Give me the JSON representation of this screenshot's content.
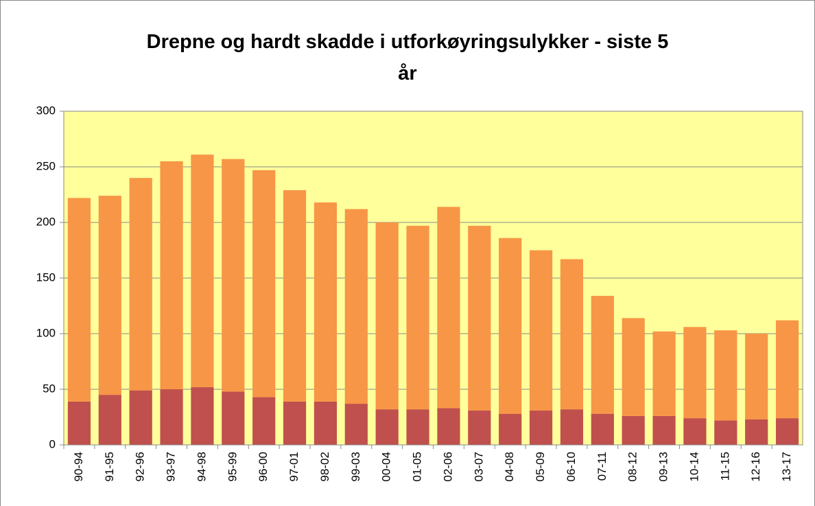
{
  "chart_data": {
    "type": "stacked_bar",
    "title": "Drepne og hardt skadde i utforkøyringsulykker - siste 5 år",
    "categories": [
      "90-94",
      "91-95",
      "92-96",
      "93-97",
      "94-98",
      "95-99",
      "96-00",
      "97-01",
      "98-02",
      "99-03",
      "00-04",
      "01-05",
      "02-06",
      "03-07",
      "04-08",
      "05-09",
      "06-10",
      "07-11",
      "08-12",
      "09-13",
      "10-14",
      "11-15",
      "12-16",
      "13-17"
    ],
    "series": [
      {
        "color": "#c0504d",
        "values": [
          39,
          45,
          49,
          50,
          52,
          48,
          43,
          39,
          39,
          37,
          32,
          32,
          33,
          31,
          28,
          31,
          32,
          28,
          26,
          26,
          24,
          22,
          23,
          24
        ]
      },
      {
        "color": "#f79646",
        "values": [
          183,
          179,
          191,
          205,
          209,
          209,
          204,
          190,
          179,
          175,
          168,
          165,
          181,
          166,
          158,
          144,
          135,
          106,
          88,
          76,
          82,
          81,
          77,
          88
        ]
      }
    ],
    "ylim": [
      0,
      300
    ],
    "yticks": [
      0,
      50,
      100,
      150,
      200,
      250,
      300
    ],
    "grid": true,
    "plot_background": "#ffff9c"
  }
}
